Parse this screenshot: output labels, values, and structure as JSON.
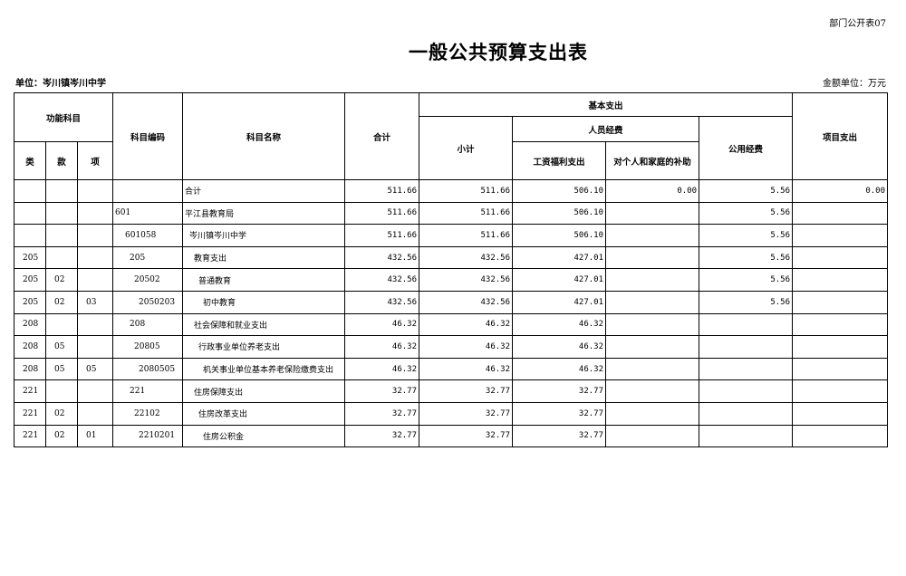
{
  "form_number": "部门公开表07",
  "title": "一般公共预算支出表",
  "unit_label": "单位：岑川镇岑川中学",
  "amount_unit": "金额单位：万元",
  "headers": {
    "func_subject": "功能科目",
    "lei": "类",
    "kuan": "款",
    "xiang": "项",
    "code": "科目编码",
    "name": "科目名称",
    "total": "合计",
    "basic": "基本支出",
    "subtotal": "小计",
    "personnel": "人员经费",
    "wages": "工资福利支出",
    "subsidy": "对个人和家庭的补助",
    "public": "公用经费",
    "project": "项目支出"
  },
  "rows": [
    {
      "lei": "",
      "kuan": "",
      "xiang": "",
      "code": "",
      "name": "合计",
      "level": 0,
      "total": "511.66",
      "subtotal": "511.66",
      "wages": "506.10",
      "subsidy": "0.00",
      "public": "5.56",
      "project": "0.00"
    },
    {
      "lei": "",
      "kuan": "",
      "xiang": "",
      "code": "601",
      "name": "平江县教育局",
      "level": 0,
      "total": "511.66",
      "subtotal": "511.66",
      "wages": "506.10",
      "subsidy": "",
      "public": "5.56",
      "project": ""
    },
    {
      "lei": "",
      "kuan": "",
      "xiang": "",
      "code": "601058",
      "name": "岑川镇岑川中学",
      "level": 1,
      "total": "511.66",
      "subtotal": "511.66",
      "wages": "506.10",
      "subsidy": "",
      "public": "5.56",
      "project": ""
    },
    {
      "lei": "205",
      "kuan": "",
      "xiang": "",
      "code": "205",
      "name": "教育支出",
      "level": 2,
      "total": "432.56",
      "subtotal": "432.56",
      "wages": "427.01",
      "subsidy": "",
      "public": "5.56",
      "project": ""
    },
    {
      "lei": "205",
      "kuan": "02",
      "xiang": "",
      "code": "20502",
      "name": "普通教育",
      "level": 3,
      "total": "432.56",
      "subtotal": "432.56",
      "wages": "427.01",
      "subsidy": "",
      "public": "5.56",
      "project": ""
    },
    {
      "lei": "205",
      "kuan": "02",
      "xiang": "03",
      "code": "2050203",
      "name": "初中教育",
      "level": 4,
      "total": "432.56",
      "subtotal": "432.56",
      "wages": "427.01",
      "subsidy": "",
      "public": "5.56",
      "project": ""
    },
    {
      "lei": "208",
      "kuan": "",
      "xiang": "",
      "code": "208",
      "name": "社会保障和就业支出",
      "level": 2,
      "total": "46.32",
      "subtotal": "46.32",
      "wages": "46.32",
      "subsidy": "",
      "public": "",
      "project": ""
    },
    {
      "lei": "208",
      "kuan": "05",
      "xiang": "",
      "code": "20805",
      "name": "行政事业单位养老支出",
      "level": 3,
      "total": "46.32",
      "subtotal": "46.32",
      "wages": "46.32",
      "subsidy": "",
      "public": "",
      "project": ""
    },
    {
      "lei": "208",
      "kuan": "05",
      "xiang": "05",
      "code": "2080505",
      "name": "机关事业单位基本养老保险缴费支出",
      "level": 4,
      "total": "46.32",
      "subtotal": "46.32",
      "wages": "46.32",
      "subsidy": "",
      "public": "",
      "project": ""
    },
    {
      "lei": "221",
      "kuan": "",
      "xiang": "",
      "code": "221",
      "name": "住房保障支出",
      "level": 2,
      "total": "32.77",
      "subtotal": "32.77",
      "wages": "32.77",
      "subsidy": "",
      "public": "",
      "project": ""
    },
    {
      "lei": "221",
      "kuan": "02",
      "xiang": "",
      "code": "22102",
      "name": "住房改革支出",
      "level": 3,
      "total": "32.77",
      "subtotal": "32.77",
      "wages": "32.77",
      "subsidy": "",
      "public": "",
      "project": ""
    },
    {
      "lei": "221",
      "kuan": "02",
      "xiang": "01",
      "code": "2210201",
      "name": "住房公积金",
      "level": 4,
      "total": "32.77",
      "subtotal": "32.77",
      "wages": "32.77",
      "subsidy": "",
      "public": "",
      "project": ""
    }
  ]
}
